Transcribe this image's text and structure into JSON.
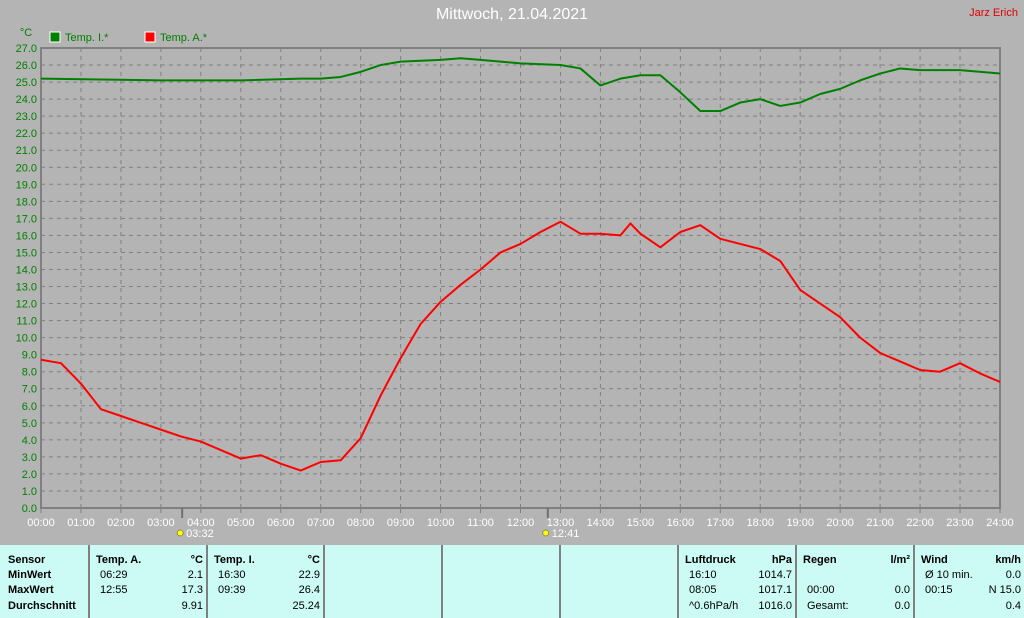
{
  "header": {
    "title": "Mittwoch, 21.04.2021",
    "author": "Jarz Erich"
  },
  "chart_data": {
    "type": "line",
    "ylabel": "°C",
    "ylim": [
      0,
      27
    ],
    "yticks": [
      "0.0",
      "1.0",
      "2.0",
      "3.0",
      "4.0",
      "5.0",
      "6.0",
      "7.0",
      "8.0",
      "9.0",
      "10.0",
      "11.0",
      "12.0",
      "13.0",
      "14.0",
      "15.0",
      "16.0",
      "17.0",
      "18.0",
      "19.0",
      "20.0",
      "21.0",
      "22.0",
      "23.0",
      "24.0",
      "25.0",
      "26.0",
      "27.0"
    ],
    "xticks": [
      "00:00",
      "01:00",
      "02:00",
      "03:00",
      "04:00",
      "05:00",
      "06:00",
      "07:00",
      "08:00",
      "09:00",
      "10:00",
      "11:00",
      "12:00",
      "13:00",
      "14:00",
      "15:00",
      "16:00",
      "17:00",
      "18:00",
      "19:00",
      "20:00",
      "21:00",
      "22:00",
      "23:00",
      "24:00"
    ],
    "grid": true,
    "legend": "top-left",
    "markers": [
      {
        "label": "03:32",
        "hour": 3.533,
        "icon": "sunrise-icon"
      },
      {
        "label": "12:41",
        "hour": 12.683,
        "icon": "sunset-icon"
      }
    ],
    "series": [
      {
        "name": "Temp. I.*",
        "color": "#008000",
        "x": [
          0,
          3,
          5,
          6.5,
          7,
          7.5,
          8,
          8.5,
          9,
          10,
          10.5,
          11,
          12,
          13,
          13.5,
          14,
          14.5,
          15,
          15.5,
          16,
          16.5,
          17,
          17.5,
          18,
          18.5,
          19,
          19.5,
          20,
          20.5,
          21,
          21.5,
          22,
          23,
          24
        ],
        "values": [
          25.2,
          25.1,
          25.1,
          25.2,
          25.2,
          25.3,
          25.6,
          26.0,
          26.2,
          26.3,
          26.4,
          26.3,
          26.1,
          26.0,
          25.8,
          24.8,
          25.2,
          25.4,
          25.4,
          24.4,
          23.3,
          23.3,
          23.8,
          24.0,
          23.6,
          23.8,
          24.3,
          24.6,
          25.1,
          25.5,
          25.8,
          25.7,
          25.7,
          25.5
        ]
      },
      {
        "name": "Temp. A.*",
        "color": "#ff0000",
        "x": [
          0,
          0.5,
          1,
          1.5,
          2,
          2.5,
          3,
          3.5,
          4,
          4.5,
          5,
          5.5,
          6,
          6.5,
          7,
          7.5,
          8,
          8.5,
          9,
          9.5,
          10,
          10.5,
          11,
          11.5,
          12,
          12.5,
          13,
          13.5,
          14,
          14.5,
          14.75,
          15,
          15.5,
          16,
          16.5,
          17,
          17.5,
          18,
          18.5,
          19,
          19.5,
          20,
          20.5,
          21,
          21.5,
          22,
          22.5,
          23,
          23.5,
          24
        ],
        "values": [
          8.7,
          8.5,
          7.3,
          5.8,
          5.4,
          5.0,
          4.6,
          4.2,
          3.9,
          3.4,
          2.9,
          3.1,
          2.6,
          2.2,
          2.7,
          2.8,
          4.1,
          6.6,
          8.8,
          10.8,
          12.1,
          13.1,
          14.0,
          15.0,
          15.5,
          16.2,
          16.8,
          16.1,
          16.1,
          16.0,
          16.7,
          16.1,
          15.3,
          16.2,
          16.6,
          15.8,
          15.5,
          15.2,
          14.5,
          12.8,
          12.0,
          11.2,
          10.0,
          9.1,
          8.6,
          8.1,
          8.0,
          8.5,
          7.9,
          7.4
        ]
      }
    ]
  },
  "table": {
    "sensor": {
      "h": "Sensor",
      "rows": [
        "MinWert",
        "MaxWert",
        "Durchschnitt"
      ]
    },
    "tempA": {
      "h": "Temp. A.",
      "u": "°C",
      "times": [
        "06:29",
        "12:55",
        ""
      ],
      "vals": [
        "2.1",
        "17.3",
        "9.91"
      ]
    },
    "tempI": {
      "h": "Temp. I.",
      "u": "°C",
      "times": [
        "16:30",
        "09:39",
        ""
      ],
      "vals": [
        "22.9",
        "26.4",
        "25.24"
      ]
    },
    "luft": {
      "h": "Luftdruck",
      "u": "hPa",
      "times": [
        "16:10",
        "08:05",
        "^0.6hPa/h"
      ],
      "vals": [
        "1014.7",
        "1017.1",
        "1016.0"
      ]
    },
    "regen": {
      "h": "Regen",
      "u": "l/m²",
      "times": [
        "",
        "00:00",
        "Gesamt:"
      ],
      "vals": [
        "",
        "0.0",
        "0.0"
      ]
    },
    "wind": {
      "h": "Wind",
      "u": "km/h",
      "times": [
        "Ø 10 min.",
        "00:15",
        ""
      ],
      "vals": [
        "0.0",
        "N 15.0",
        "0.4"
      ]
    }
  }
}
